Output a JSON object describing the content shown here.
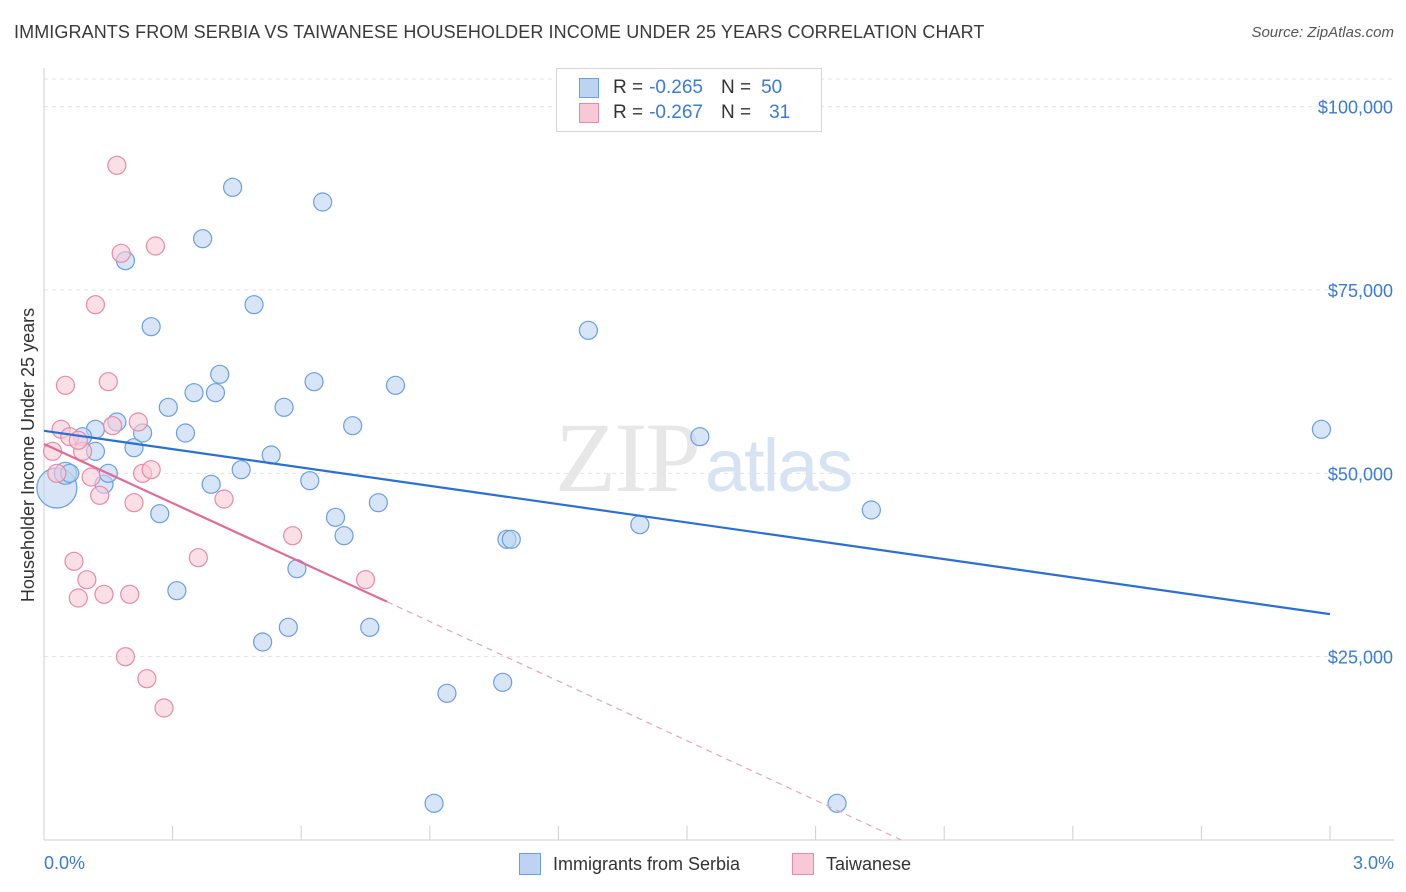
{
  "title": "IMMIGRANTS FROM SERBIA VS TAIWANESE HOUSEHOLDER INCOME UNDER 25 YEARS CORRELATION CHART",
  "source": "Source: ZipAtlas.com",
  "watermark": {
    "zip": "ZIP",
    "atlas": "atlas"
  },
  "legend": {
    "rows": [
      {
        "r_label": "R =",
        "r_value": "-0.265",
        "n_label": "N =",
        "n_value": "50",
        "color": "#a9c8f0",
        "border": "#6a9fe0"
      },
      {
        "r_label": "R =",
        "r_value": "-0.267",
        "n_label": "N =",
        "n_value": "31",
        "color": "#f7c5d4",
        "border": "#e78aa8"
      }
    ]
  },
  "bottom_legend": {
    "serbia": "Immigrants from Serbia",
    "taiwanese": "Taiwanese"
  },
  "chart_data": {
    "type": "scatter",
    "xlabel": "",
    "ylabel": "Householder Income Under 25 years",
    "xlim": [
      0,
      3.0
    ],
    "ylim": [
      0,
      105000
    ],
    "x_tick_labels": [
      "0.0%",
      "3.0%"
    ],
    "y_ticks": [
      25000,
      50000,
      75000,
      100000
    ],
    "y_tick_labels": [
      "$25,000",
      "$50,000",
      "$75,000",
      "$100,000"
    ],
    "grid": true,
    "legend_position": "top-center",
    "series": [
      {
        "name": "Immigrants from Serbia",
        "color": "#6a9fe0",
        "fill": "#bcd4f2",
        "trend": {
          "x": [
            0.0,
            3.0
          ],
          "y": [
            55800,
            30800
          ],
          "color": "#2a6fd4"
        },
        "points": [
          [
            0.03,
            48000
          ],
          [
            0.05,
            50000
          ],
          [
            0.12,
            56000
          ],
          [
            0.12,
            53000
          ],
          [
            0.14,
            48500
          ],
          [
            0.15,
            50000
          ],
          [
            0.17,
            57000
          ],
          [
            0.19,
            79000
          ],
          [
            0.21,
            53500
          ],
          [
            0.23,
            55500
          ],
          [
            0.25,
            70000
          ],
          [
            0.27,
            44500
          ],
          [
            0.29,
            59000
          ],
          [
            0.31,
            34000
          ],
          [
            0.33,
            55500
          ],
          [
            0.35,
            61000
          ],
          [
            0.37,
            82000
          ],
          [
            0.39,
            48500
          ],
          [
            0.4,
            61000
          ],
          [
            0.41,
            63500
          ],
          [
            0.44,
            89000
          ],
          [
            0.46,
            50500
          ],
          [
            0.49,
            73000
          ],
          [
            0.51,
            27000
          ],
          [
            0.53,
            52500
          ],
          [
            0.56,
            59000
          ],
          [
            0.57,
            29000
          ],
          [
            0.59,
            37000
          ],
          [
            0.62,
            49000
          ],
          [
            0.63,
            62500
          ],
          [
            0.65,
            87000
          ],
          [
            0.68,
            44000
          ],
          [
            0.7,
            41500
          ],
          [
            0.72,
            56500
          ],
          [
            0.76,
            29000
          ],
          [
            0.78,
            46000
          ],
          [
            0.82,
            62000
          ],
          [
            0.91,
            5000
          ],
          [
            0.94,
            20000
          ],
          [
            1.07,
            21500
          ],
          [
            1.08,
            41000
          ],
          [
            1.09,
            41000
          ],
          [
            1.27,
            69500
          ],
          [
            1.39,
            43000
          ],
          [
            1.53,
            55000
          ],
          [
            1.85,
            5000
          ],
          [
            1.93,
            45000
          ],
          [
            2.98,
            56000
          ],
          [
            0.09,
            55000
          ],
          [
            0.06,
            50000
          ]
        ]
      },
      {
        "name": "Taiwanese",
        "color": "#e78aa8",
        "fill": "#f7c9d7",
        "trend": {
          "x": [
            0.0,
            0.8
          ],
          "y": [
            54000,
            32500
          ],
          "color": "#e26b95"
        },
        "trend_dashed": {
          "x": [
            0.8,
            2.0
          ],
          "y": [
            32500,
            0
          ]
        },
        "points": [
          [
            0.02,
            53000
          ],
          [
            0.03,
            50000
          ],
          [
            0.04,
            56000
          ],
          [
            0.05,
            62000
          ],
          [
            0.06,
            55000
          ],
          [
            0.07,
            38000
          ],
          [
            0.08,
            33000
          ],
          [
            0.09,
            53000
          ],
          [
            0.1,
            35500
          ],
          [
            0.11,
            49500
          ],
          [
            0.12,
            73000
          ],
          [
            0.13,
            47000
          ],
          [
            0.14,
            33500
          ],
          [
            0.15,
            62500
          ],
          [
            0.16,
            56500
          ],
          [
            0.17,
            92000
          ],
          [
            0.18,
            80000
          ],
          [
            0.19,
            25000
          ],
          [
            0.2,
            33500
          ],
          [
            0.21,
            46000
          ],
          [
            0.22,
            57000
          ],
          [
            0.23,
            50000
          ],
          [
            0.24,
            22000
          ],
          [
            0.25,
            50500
          ],
          [
            0.26,
            81000
          ],
          [
            0.28,
            18000
          ],
          [
            0.36,
            38500
          ],
          [
            0.42,
            46500
          ],
          [
            0.58,
            41500
          ],
          [
            0.75,
            35500
          ],
          [
            0.08,
            54500
          ]
        ]
      }
    ]
  }
}
